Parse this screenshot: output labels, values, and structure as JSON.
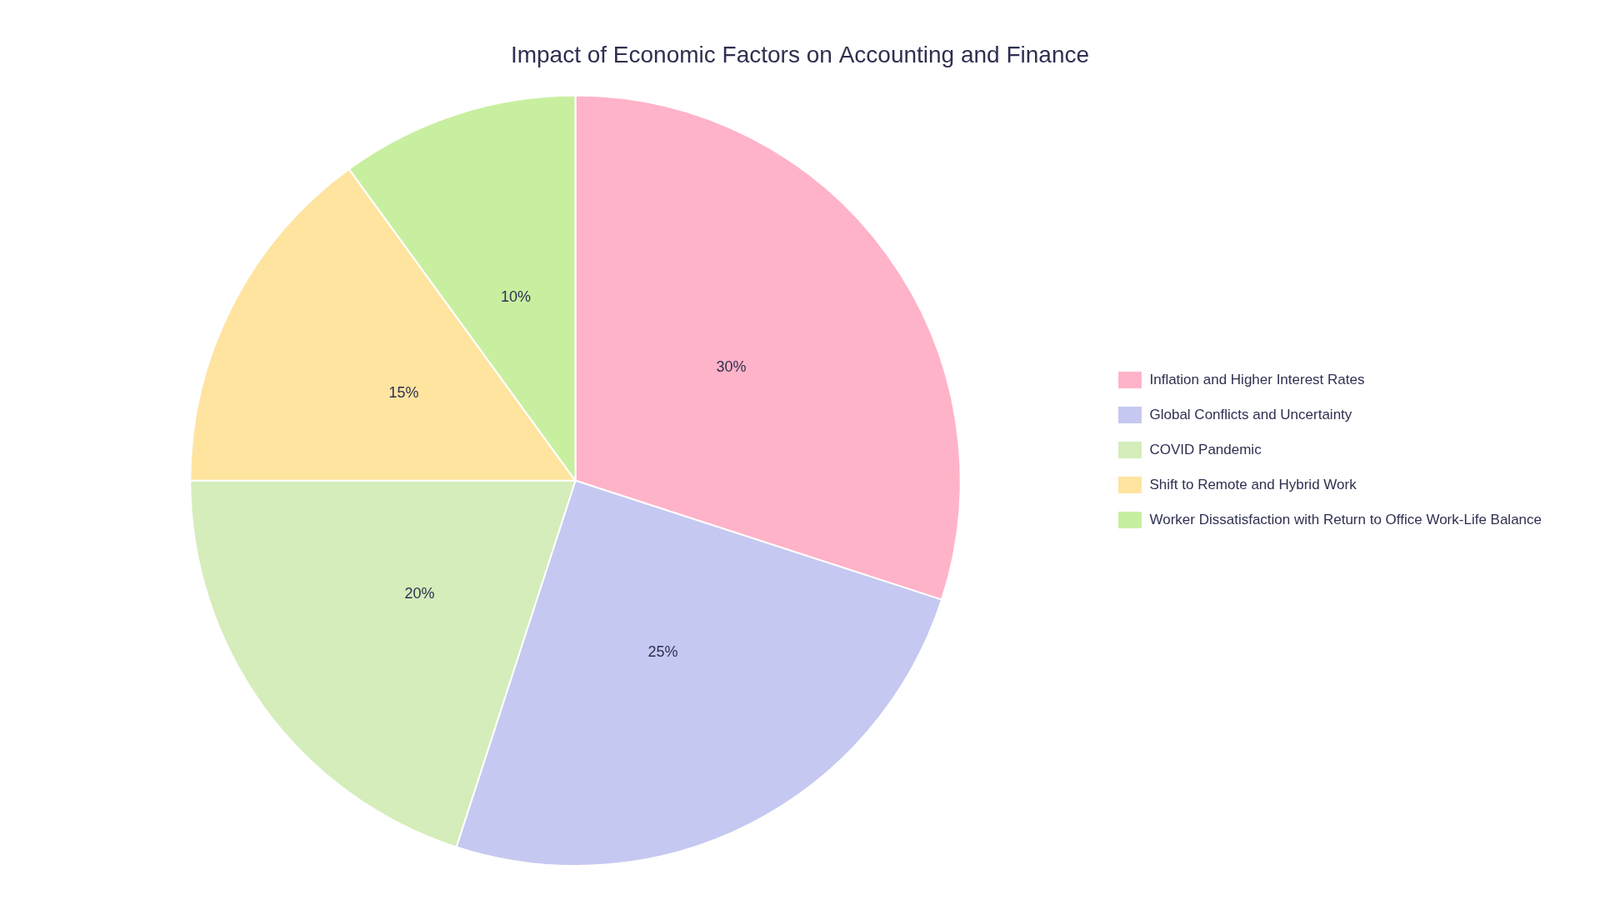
{
  "chart_data": {
    "type": "pie",
    "title": "Impact of Economic Factors on Accounting and Finance",
    "categories": [
      "Inflation and Higher Interest Rates",
      "Global Conflicts and Uncertainty",
      "COVID Pandemic",
      "Shift to Remote and Hybrid Work",
      "Worker Dissatisfaction with Return to Office Work-Life Balance"
    ],
    "values": [
      30,
      25,
      20,
      15,
      10
    ],
    "value_labels": [
      "30%",
      "25%",
      "20%",
      "15%",
      "10%"
    ],
    "colors": [
      "#FFB3C8",
      "#C5C8F0",
      "#D4EDBA",
      "#FFE4A0",
      "#C8EFA0"
    ],
    "data_labels": true,
    "legend": "right"
  }
}
